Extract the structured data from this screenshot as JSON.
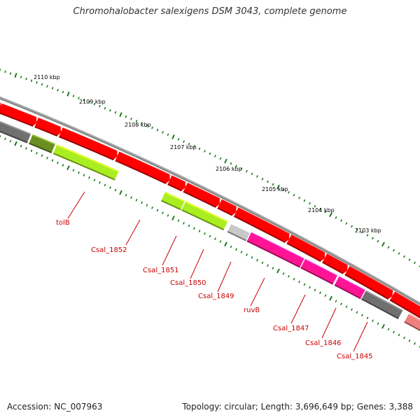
{
  "title": "Chromohalobacter salexigens DSM 3043, complete genome",
  "accession": "Accession: NC_007963",
  "stats": "Topology: circular; Length: 3,696,649 bp; Genes: 3,388",
  "colors": {
    "forward_gene": "#ff0000",
    "backbone": "#888888",
    "tick": "#1a7a1a",
    "label": "#cc0000",
    "lime": "#aaee22",
    "olive": "#6b8e23",
    "gray": "#707070",
    "lightgray": "#c8c8c8",
    "magenta": "#ff1493",
    "pink": "#f08080"
  },
  "ticks": [
    "2110 kbp",
    "2109 kbp",
    "2108 kbp",
    "2107 kbp",
    "2106 kbp",
    "2105 kbp",
    "2104 kbp",
    "2103 kbp"
  ],
  "gene_labels": [
    "tolB",
    "Csal_1852",
    "Csal_1851",
    "Csal_1850",
    "Csal_1849",
    "ruvB",
    "Csal_1847",
    "Csal_1846",
    "Csal_1845"
  ],
  "genes_outer": [
    {
      "a": 0.0,
      "b": 0.014,
      "color": "forward_gene"
    },
    {
      "a": 0.016,
      "b": 0.096,
      "color": "forward_gene"
    },
    {
      "a": 0.1,
      "b": 0.152,
      "color": "forward_gene"
    },
    {
      "a": 0.156,
      "b": 0.282,
      "color": "forward_gene"
    },
    {
      "a": 0.286,
      "b": 0.403,
      "color": "forward_gene"
    },
    {
      "a": 0.407,
      "b": 0.439,
      "color": "forward_gene"
    },
    {
      "a": 0.443,
      "b": 0.518,
      "color": "forward_gene"
    },
    {
      "a": 0.522,
      "b": 0.556,
      "color": "forward_gene"
    },
    {
      "a": 0.56,
      "b": 0.678,
      "color": "forward_gene"
    },
    {
      "a": 0.682,
      "b": 0.76,
      "color": "forward_gene"
    },
    {
      "a": 0.764,
      "b": 0.812,
      "color": "forward_gene"
    },
    {
      "a": 0.816,
      "b": 0.916,
      "color": "forward_gene"
    },
    {
      "a": 0.92,
      "b": 1.0,
      "color": "forward_gene"
    }
  ],
  "genes_inner": [
    {
      "a": 0.0,
      "b": 0.083,
      "color": "gray"
    },
    {
      "a": 0.087,
      "b": 0.139,
      "color": "olive"
    },
    {
      "a": 0.143,
      "b": 0.285,
      "color": "lime"
    },
    {
      "a": 0.392,
      "b": 0.437,
      "color": "lime"
    },
    {
      "a": 0.439,
      "b": 0.536,
      "color": "lime"
    },
    {
      "a": 0.545,
      "b": 0.588,
      "color": "lightgray"
    },
    {
      "a": 0.59,
      "b": 0.712,
      "color": "magenta"
    },
    {
      "a": 0.714,
      "b": 0.788,
      "color": "magenta"
    },
    {
      "a": 0.792,
      "b": 0.852,
      "color": "magenta"
    },
    {
      "a": 0.854,
      "b": 0.939,
      "color": "gray"
    },
    {
      "a": 0.953,
      "b": 1.0,
      "color": "pink"
    }
  ]
}
